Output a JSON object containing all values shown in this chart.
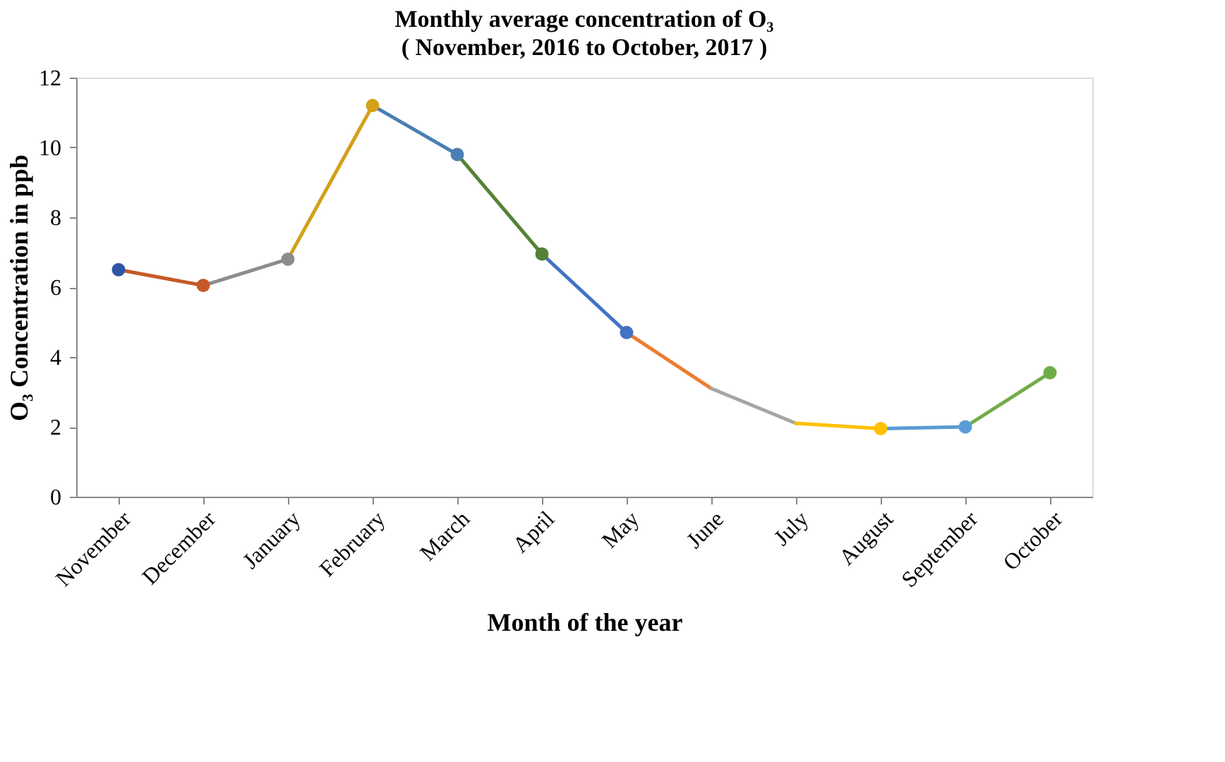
{
  "chart_data": {
    "type": "line",
    "title": "Monthly average concentration  of O₃",
    "subtitle": "( November, 2016 to October, 2017 )",
    "xlabel": "Month of the year",
    "ylabel": "O₃  Concentration in ppb",
    "categories": [
      "November",
      "December",
      "January",
      "February",
      "March",
      "April",
      "May",
      "June",
      "July",
      "August",
      "September",
      "October"
    ],
    "series": [
      {
        "color": "#c55a28",
        "values": [
          6.5,
          6.05,
          null,
          null,
          null,
          null,
          null,
          null,
          null,
          null,
          null,
          null
        ]
      },
      {
        "color": "#8c8c8c",
        "values": [
          null,
          6.05,
          6.8,
          null,
          null,
          null,
          null,
          null,
          null,
          null,
          null,
          null
        ]
      },
      {
        "color": "#d4a017",
        "values": [
          null,
          null,
          6.8,
          11.2,
          null,
          null,
          null,
          null,
          null,
          null,
          null,
          null
        ]
      },
      {
        "color": "#4a7eb5",
        "values": [
          null,
          null,
          null,
          11.2,
          9.8,
          null,
          null,
          null,
          null,
          null,
          null,
          null
        ]
      },
      {
        "color": "#548235",
        "values": [
          null,
          null,
          null,
          null,
          9.8,
          6.95,
          null,
          null,
          null,
          null,
          null,
          null
        ]
      },
      {
        "color": "#4472c4",
        "values": [
          null,
          null,
          null,
          null,
          null,
          6.95,
          4.7,
          null,
          null,
          null,
          null,
          null
        ]
      },
      {
        "color": "#ed7d31",
        "values": [
          null,
          null,
          null,
          null,
          null,
          null,
          4.7,
          3.1,
          null,
          null,
          null,
          null
        ]
      },
      {
        "color": "#a5a5a5",
        "values": [
          null,
          null,
          null,
          null,
          null,
          null,
          null,
          3.1,
          2.1,
          null,
          null,
          null
        ]
      },
      {
        "color": "#ffc000",
        "values": [
          null,
          null,
          null,
          null,
          null,
          null,
          null,
          null,
          2.1,
          1.95,
          null,
          null
        ]
      },
      {
        "color": "#5b9bd5",
        "values": [
          null,
          null,
          null,
          null,
          null,
          null,
          null,
          null,
          null,
          1.95,
          2.0,
          null
        ]
      },
      {
        "color": "#70ad47",
        "values": [
          null,
          null,
          null,
          null,
          null,
          null,
          null,
          null,
          null,
          null,
          2.0,
          3.55
        ]
      },
      {
        "type": "scatter",
        "marker": "circle",
        "values": [
          6.5,
          6.05,
          6.8,
          11.2,
          9.8,
          6.95,
          4.7,
          null,
          null,
          1.95,
          2.0,
          3.55
        ],
        "colors": [
          "#2f55a4",
          "#c55a28",
          "#8c8c8c",
          "#d4a017",
          "#4a7eb5",
          "#548235",
          "#4472c4",
          "#ed7d31",
          "#a5a5a5",
          "#ffc000",
          "#5b9bd5",
          "#70ad47"
        ]
      }
    ],
    "ylim": [
      0,
      12
    ],
    "yticks": [
      0,
      2,
      4,
      6,
      8,
      10,
      12
    ],
    "grid": false,
    "marker": "none"
  }
}
